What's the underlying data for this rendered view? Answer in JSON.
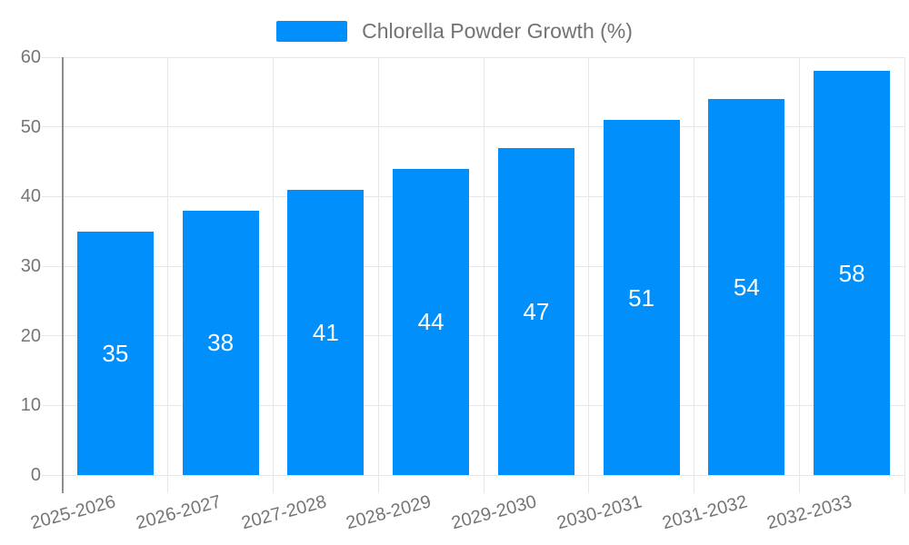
{
  "chart_data": {
    "type": "bar",
    "title": "Chlorella Powder Growth (%)",
    "categories": [
      "2025-2026",
      "2026-2027",
      "2027-2028",
      "2028-2029",
      "2029-2030",
      "2030-2031",
      "2031-2032",
      "2032-2033"
    ],
    "values": [
      35,
      38,
      41,
      44,
      47,
      51,
      54,
      58
    ],
    "bar_value_labels": [
      "35",
      "38",
      "41",
      "44",
      "47",
      "51",
      "54",
      "58"
    ],
    "ytick_labels": [
      "0",
      "10",
      "20",
      "30",
      "40",
      "50",
      "60"
    ],
    "ylim": [
      0,
      60
    ],
    "ytick_step": 10,
    "xlabel": "",
    "ylabel": "",
    "grid": true,
    "legend_position": "top",
    "colors": {
      "bar": "#008FFB",
      "bar_value_text": "#ffffff",
      "axis_text": "#757575",
      "legend_text": "#737373",
      "gridline": "#e7e7e7",
      "axis_line": "#8e8e8e",
      "background": "#ffffff"
    }
  }
}
